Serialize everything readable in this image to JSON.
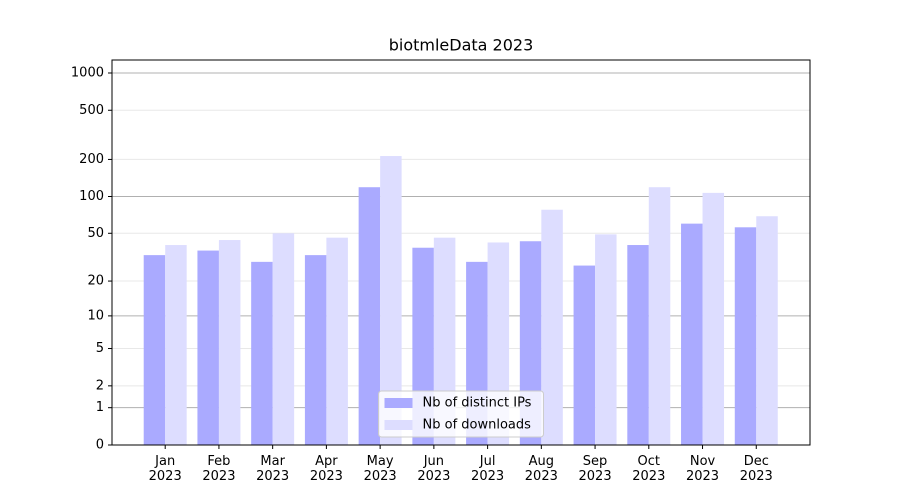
{
  "chart_data": {
    "type": "bar",
    "title": "biotmleData 2023",
    "categories": [
      "Jan 2023",
      "Feb 2023",
      "Mar 2023",
      "Apr 2023",
      "May 2023",
      "Jun 2023",
      "Jul 2023",
      "Aug 2023",
      "Sep 2023",
      "Oct 2023",
      "Nov 2023",
      "Dec 2023"
    ],
    "series": [
      {
        "name": "Nb of distinct IPs",
        "color": "#aaaaff",
        "values": [
          33,
          36,
          29,
          33,
          119,
          38,
          29,
          43,
          27,
          40,
          60,
          56
        ]
      },
      {
        "name": "Nb of downloads",
        "color": "#ddddff",
        "values": [
          40,
          44,
          50,
          46,
          213,
          46,
          42,
          78,
          49,
          119,
          107,
          69
        ]
      }
    ],
    "yscale": "log1p",
    "ylim": [
      0,
      1273
    ],
    "yticks": [
      0,
      1,
      2,
      5,
      10,
      20,
      50,
      100,
      200,
      500,
      1000
    ],
    "grid": true,
    "legend": "lower center"
  }
}
